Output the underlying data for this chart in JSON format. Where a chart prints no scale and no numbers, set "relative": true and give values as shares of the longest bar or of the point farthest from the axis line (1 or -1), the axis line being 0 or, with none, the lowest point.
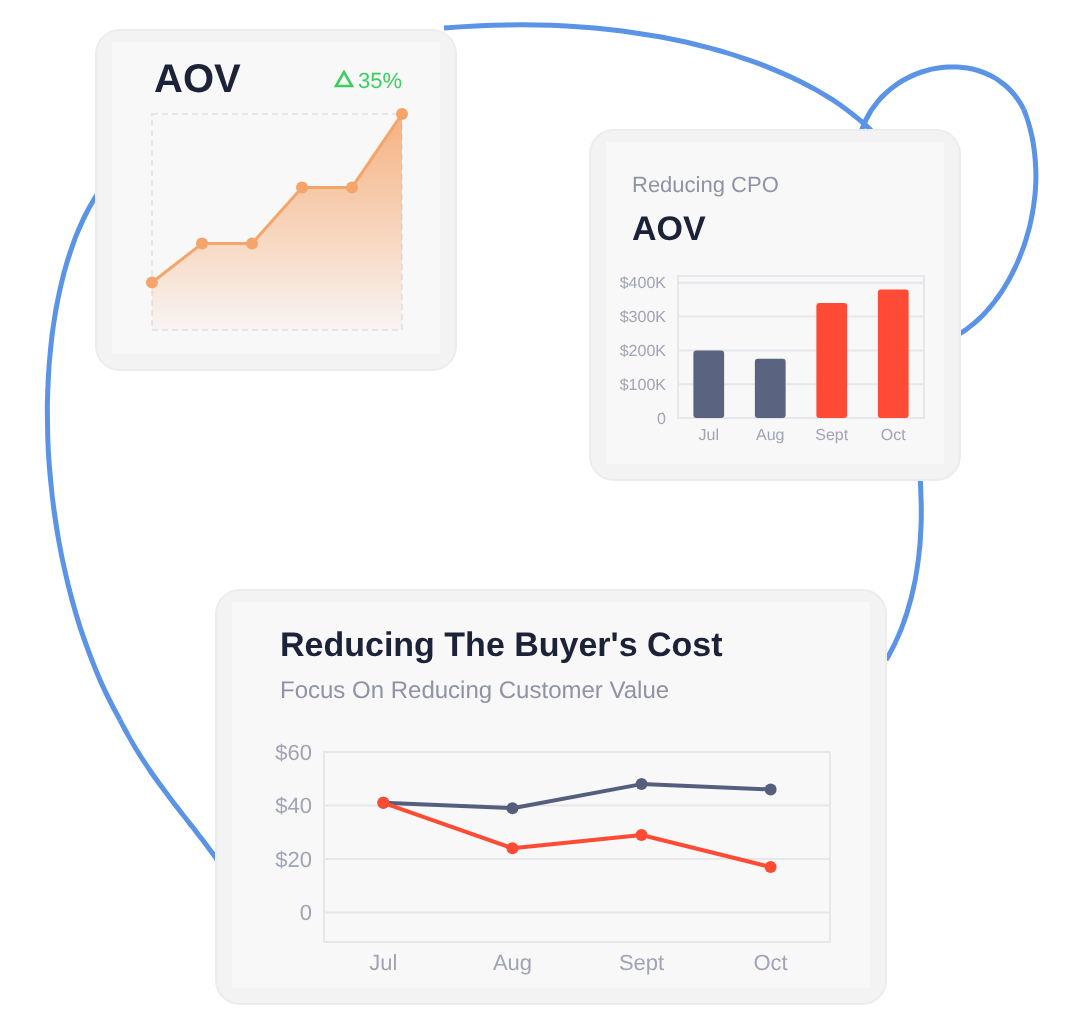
{
  "chart_data": [
    {
      "type": "area",
      "title": "AOV",
      "annotations": [
        "35%"
      ],
      "categories": [
        null,
        null,
        null,
        null,
        null,
        null
      ],
      "values": [
        0.22,
        0.4,
        0.4,
        0.66,
        0.66,
        1
      ],
      "relative": true,
      "color": "#f5a56a",
      "marker": "circle"
    },
    {
      "type": "bar",
      "subtitle": "Reducing CPO",
      "title": "AOV",
      "categories": [
        "Jul",
        "Aug",
        "Sept",
        "Oct"
      ],
      "values": [
        200000,
        175000,
        340000,
        380000
      ],
      "colors": [
        "#5a6380",
        "#5a6380",
        "#ff4a36",
        "#ff4a36"
      ],
      "ylim": [
        0,
        420000
      ],
      "yticks": [
        {
          "value": 0,
          "label": "0"
        },
        {
          "value": 100000,
          "label": "$100K"
        },
        {
          "value": 200000,
          "label": "$200K"
        },
        {
          "value": 300000,
          "label": "$300K"
        },
        {
          "value": 400000,
          "label": "$400K"
        }
      ],
      "grid": "y"
    },
    {
      "type": "line",
      "title": "Reducing The Buyer's Cost",
      "subtitle": "Focus On Reducing Customer Value",
      "categories": [
        "Jul",
        "Aug",
        "Sept",
        "Oct"
      ],
      "series": [
        {
          "color": "#565e7e",
          "values": [
            41,
            39,
            48,
            46
          ]
        },
        {
          "color": "#ff4b33",
          "values": [
            41,
            24,
            29,
            17
          ]
        }
      ],
      "ylim": [
        -11,
        60
      ],
      "yticks": [
        {
          "value": 0,
          "label": "0"
        },
        {
          "value": 20,
          "label": "$20"
        },
        {
          "value": 40,
          "label": "$40"
        },
        {
          "value": 60,
          "label": "$60"
        }
      ],
      "grid": "y",
      "marker": "circle"
    }
  ]
}
